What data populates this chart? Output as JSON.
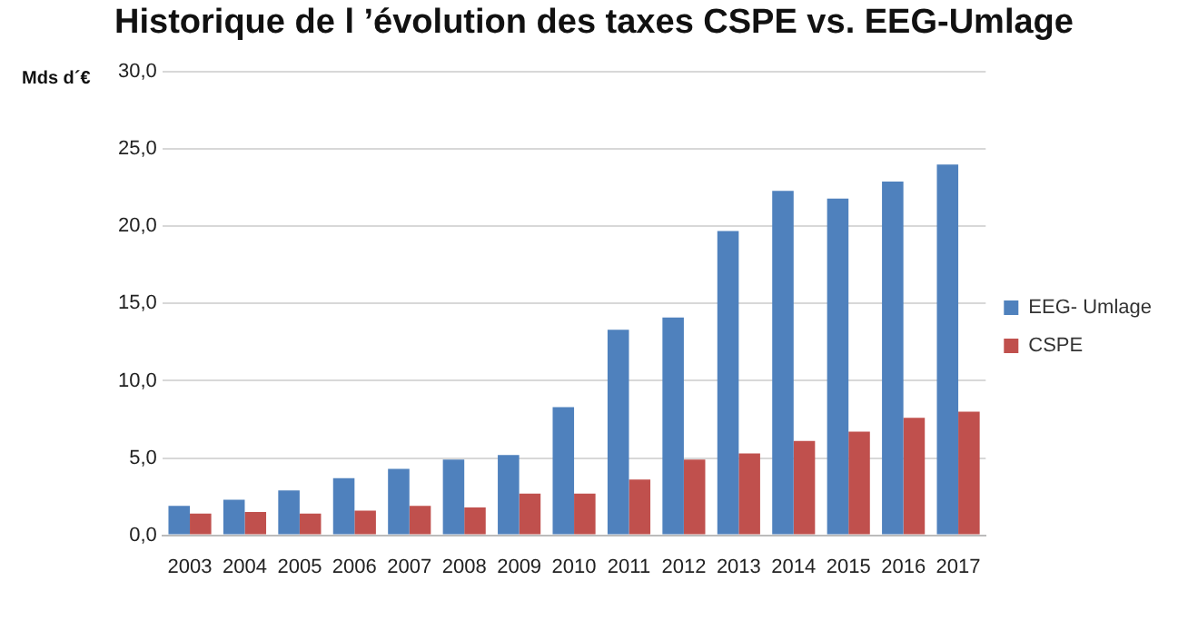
{
  "chart_data": {
    "type": "bar",
    "title": "Historique de l ’évolution des taxes CSPE vs. EEG-Umlage",
    "ylabel": "Mds d´€",
    "categories": [
      "2003",
      "2004",
      "2005",
      "2006",
      "2007",
      "2008",
      "2009",
      "2010",
      "2011",
      "2012",
      "2013",
      "2014",
      "2015",
      "2016",
      "2017"
    ],
    "series": [
      {
        "name": "EEG- Umlage",
        "color": "#4f81bd",
        "values": [
          1.9,
          2.3,
          2.9,
          3.7,
          4.3,
          4.9,
          5.2,
          8.3,
          13.3,
          14.1,
          19.7,
          22.3,
          21.8,
          22.9,
          24.0
        ]
      },
      {
        "name": "CSPE",
        "color": "#c0504d",
        "values": [
          1.4,
          1.5,
          1.4,
          1.6,
          1.9,
          1.8,
          2.7,
          2.7,
          3.6,
          4.9,
          5.3,
          6.1,
          6.7,
          7.6,
          8.0
        ]
      }
    ],
    "ylim": [
      0,
      30
    ],
    "yticks": [
      {
        "value": 0,
        "label": "0,0"
      },
      {
        "value": 5,
        "label": "5,0"
      },
      {
        "value": 10,
        "label": "10,0"
      },
      {
        "value": 15,
        "label": "15,0"
      },
      {
        "value": 20,
        "label": "20,0"
      },
      {
        "value": 25,
        "label": "25,0"
      },
      {
        "value": 30,
        "label": "30,0"
      }
    ],
    "grid": "y",
    "legend": "right"
  }
}
